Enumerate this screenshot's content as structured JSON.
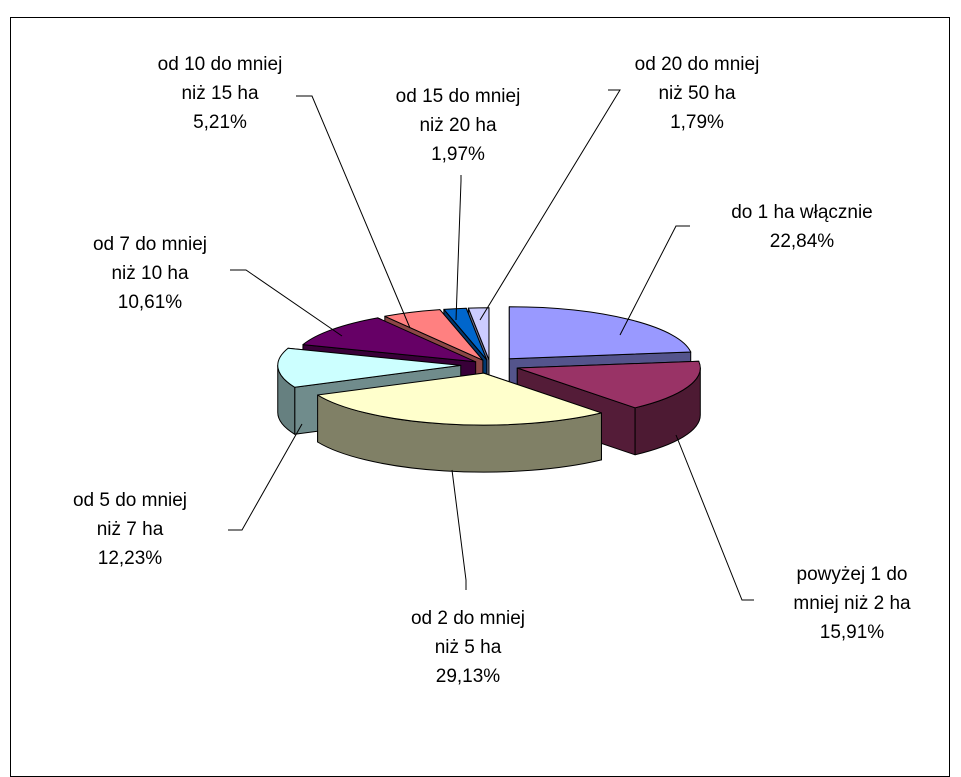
{
  "chart_data": {
    "type": "pie",
    "style": "3d-exploded",
    "title": "",
    "slices": [
      {
        "name": "do 1 ha włącznie",
        "label_lines": [
          "do 1 ha włącznie"
        ],
        "value": 22.84,
        "value_label": "22,84%",
        "color": "#9999ff"
      },
      {
        "name": "powyżej 1 do mniej niż 2 ha",
        "label_lines": [
          "powyżej 1 do",
          "mniej niż 2 ha"
        ],
        "value": 15.91,
        "value_label": "15,91%",
        "color": "#993366"
      },
      {
        "name": "od 2 do mniej niż 5 ha",
        "label_lines": [
          "od 2 do mniej",
          "niż 5 ha"
        ],
        "value": 29.13,
        "value_label": "29,13%",
        "color": "#ffffcc"
      },
      {
        "name": "od 5 do mniej niż 7 ha",
        "label_lines": [
          "od 5 do mniej",
          "niż 7 ha"
        ],
        "value": 12.23,
        "value_label": "12,23%",
        "color": "#ccffff"
      },
      {
        "name": "od 7 do mniej niż 10 ha",
        "label_lines": [
          "od 7 do mniej",
          "niż 10 ha"
        ],
        "value": 10.61,
        "value_label": "10,61%",
        "color": "#660066"
      },
      {
        "name": "od 10 do mniej niż 15 ha",
        "label_lines": [
          "od 10 do mniej",
          "niż 15 ha"
        ],
        "value": 5.21,
        "value_label": "5,21%",
        "color": "#ff8080"
      },
      {
        "name": "od 15 do mniej niż 20 ha",
        "label_lines": [
          "od 15 do mniej",
          "niż 20 ha"
        ],
        "value": 1.97,
        "value_label": "1,97%",
        "color": "#0066cc"
      },
      {
        "name": "od 20 do mniej niż 50 ha",
        "label_lines": [
          "od 20 do mniej",
          "niż 50 ha"
        ],
        "value": 1.79,
        "value_label": "1,79%",
        "color": "#ccccff"
      }
    ]
  }
}
